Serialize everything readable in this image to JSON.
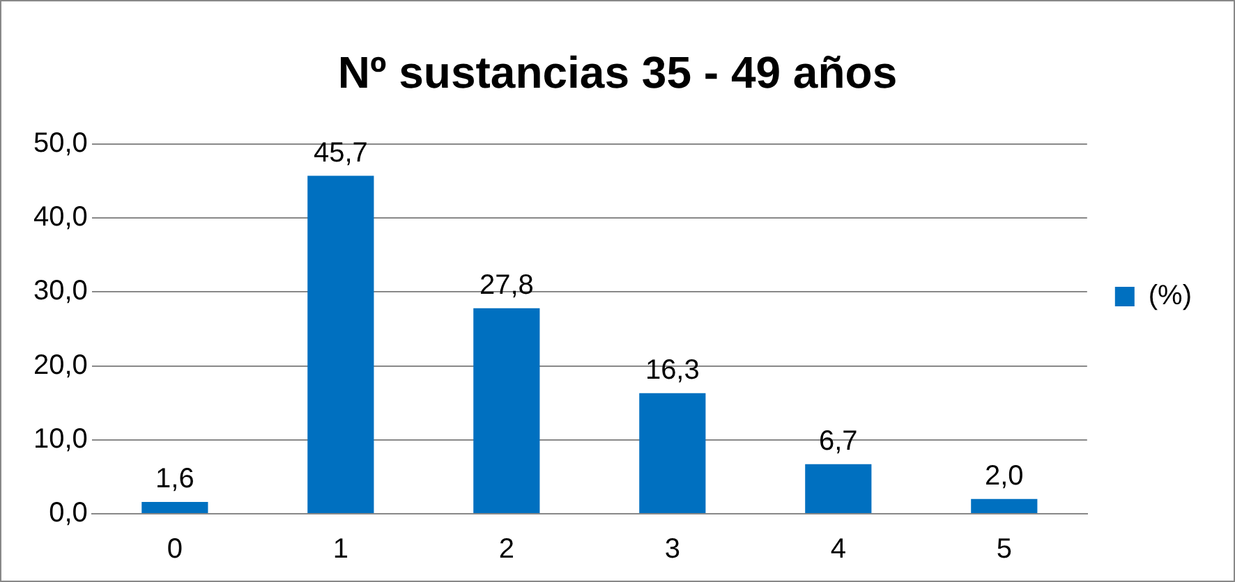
{
  "chart_data": {
    "type": "bar",
    "title": "Nº sustancias 35 - 49 años",
    "categories": [
      "0",
      "1",
      "2",
      "3",
      "4",
      "5"
    ],
    "series": [
      {
        "name": "(%)",
        "color": "#0070c0",
        "values": [
          1.6,
          45.7,
          27.8,
          16.3,
          6.7,
          2.0
        ],
        "value_labels": [
          "1,6",
          "45,7",
          "27,8",
          "16,3",
          "6,7",
          "2,0"
        ]
      }
    ],
    "ylim": [
      0,
      50
    ],
    "yticks": [
      {
        "value": 0,
        "label": "0,0"
      },
      {
        "value": 10,
        "label": "10,0"
      },
      {
        "value": 20,
        "label": "20,0"
      },
      {
        "value": 30,
        "label": "30,0"
      },
      {
        "value": 40,
        "label": "40,0"
      },
      {
        "value": 50,
        "label": "50,0"
      }
    ],
    "grid": "y",
    "legend": "right"
  }
}
